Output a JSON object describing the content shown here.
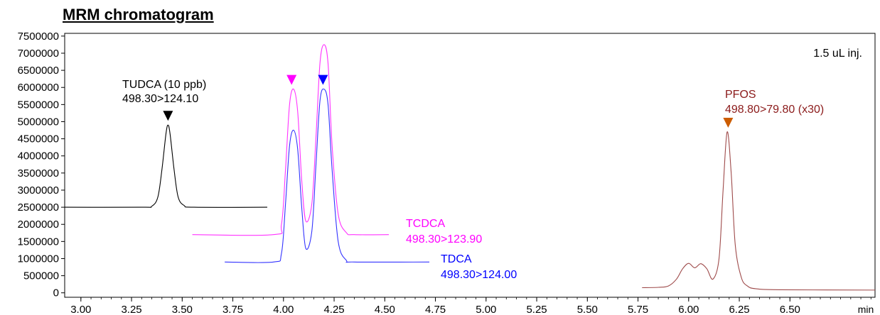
{
  "title": "MRM chromatogram",
  "chart_data": {
    "type": "line",
    "xlabel": "min",
    "xlim": [
      2.92,
      6.92
    ],
    "ylim": [
      -130000,
      7580000
    ],
    "x_ticks": [
      "3.00",
      "3.25",
      "3.50",
      "3.75",
      "4.00",
      "4.25",
      "4.50",
      "4.75",
      "5.00",
      "5.25",
      "5.50",
      "5.75",
      "6.00",
      "6.25",
      "6.50"
    ],
    "y_ticks": [
      "7500000",
      "7000000",
      "6500000",
      "6000000",
      "5500000",
      "5000000",
      "4500000",
      "4000000",
      "3500000",
      "3000000",
      "2500000",
      "2000000",
      "1500000",
      "1000000",
      "500000",
      "0"
    ],
    "grid": false,
    "injection_note": "1.5 uL inj.",
    "series": [
      {
        "name": "TUDCA",
        "colors": {
          "line": "#000000",
          "marker": "#000000",
          "label": "#000000"
        },
        "label_lines": [
          "TUDCA (10 ppb)",
          "498.30>124.10"
        ],
        "x": [
          2.92,
          3.3,
          3.35,
          3.38,
          3.4,
          3.42,
          3.43,
          3.44,
          3.46,
          3.48,
          3.51,
          3.56,
          3.92
        ],
        "y": [
          2500000,
          2500000,
          2530000,
          2800000,
          3600000,
          4650000,
          4900000,
          4650000,
          3600000,
          2800000,
          2550000,
          2500000,
          2500000
        ],
        "marker_x": 3.43
      },
      {
        "name": "TCDCA",
        "colors": {
          "line": "#ff33ff",
          "marker": "#ff00ff",
          "label": "#ff00ff"
        },
        "label_lines": [
          "TCDCA",
          "498.30>123.90"
        ],
        "x": [
          3.55,
          3.95,
          3.99,
          4.01,
          4.03,
          4.05,
          4.07,
          4.09,
          4.11,
          4.14,
          4.16,
          4.18,
          4.2,
          4.22,
          4.24,
          4.27,
          4.31,
          4.35,
          4.52
        ],
        "y": [
          1700000,
          1700000,
          2000000,
          3600000,
          5500000,
          5950000,
          5300000,
          3300000,
          2100000,
          2600000,
          4500000,
          6700000,
          7250000,
          6700000,
          4300000,
          2300000,
          1760000,
          1700000,
          1700000
        ],
        "marker_x": 4.04
      },
      {
        "name": "TDCA",
        "colors": {
          "line": "#3333ff",
          "marker": "#0000ff",
          "label": "#0000ff"
        },
        "label_lines": [
          "TDCA",
          "498.30>124.00"
        ],
        "x": [
          3.71,
          3.95,
          3.99,
          4.01,
          4.03,
          4.05,
          4.07,
          4.09,
          4.11,
          4.14,
          4.16,
          4.18,
          4.2,
          4.22,
          4.24,
          4.27,
          4.31,
          4.35,
          4.72
        ],
        "y": [
          900000,
          900000,
          1150000,
          2600000,
          4300000,
          4750000,
          4200000,
          2500000,
          1300000,
          1800000,
          3700000,
          5600000,
          5950000,
          5500000,
          3600000,
          1500000,
          950000,
          900000,
          900000
        ],
        "marker_x": 4.195
      },
      {
        "name": "PFOS",
        "colors": {
          "line": "#9e4a4a",
          "marker": "#cc5c00",
          "label": "#8b1a1a"
        },
        "label_lines": [
          "PFOS",
          "498.80>79.80 (x30)"
        ],
        "x": [
          5.77,
          5.85,
          5.9,
          5.94,
          5.97,
          6.0,
          6.03,
          6.06,
          6.09,
          6.12,
          6.15,
          6.17,
          6.19,
          6.21,
          6.23,
          6.26,
          6.29,
          6.33,
          6.45,
          6.92
        ],
        "y": [
          150000,
          160000,
          200000,
          400000,
          700000,
          860000,
          730000,
          850000,
          700000,
          400000,
          1000000,
          3000000,
          4700000,
          3500000,
          1400000,
          450000,
          200000,
          120000,
          90000,
          80000
        ],
        "marker_x": 6.195
      }
    ]
  }
}
